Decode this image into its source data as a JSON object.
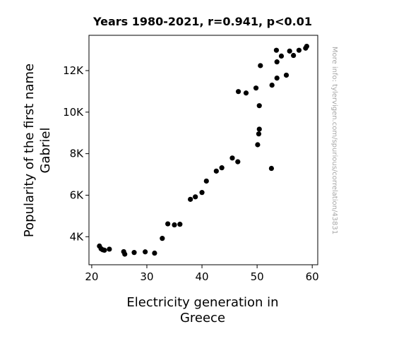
{
  "chart_data": {
    "type": "scatter",
    "title": "Years 1980-2021, r=0.941, p<0.01",
    "xlabel_lines": [
      "Electricity generation in",
      "Greece"
    ],
    "ylabel_lines": [
      "Popularity of the first name",
      "Gabriel"
    ],
    "side_note": "More info: tylervigen.com/spurious/correlation/43831",
    "xlim": [
      19.5,
      61
    ],
    "ylim": [
      2650,
      13700
    ],
    "x_ticks": [
      20,
      30,
      40,
      50,
      60
    ],
    "x_tick_labels": [
      "20",
      "30",
      "40",
      "50",
      "60"
    ],
    "y_ticks": [
      4000,
      6000,
      8000,
      10000,
      12000
    ],
    "y_tick_labels": [
      "4K",
      "6K",
      "8K",
      "10K",
      "12K"
    ],
    "point_color": "#000000",
    "points": [
      {
        "x": 21.4,
        "y": 3550
      },
      {
        "x": 21.7,
        "y": 3420
      },
      {
        "x": 22.0,
        "y": 3370
      },
      {
        "x": 22.3,
        "y": 3350
      },
      {
        "x": 23.2,
        "y": 3400
      },
      {
        "x": 25.8,
        "y": 3280
      },
      {
        "x": 26.0,
        "y": 3160
      },
      {
        "x": 27.7,
        "y": 3240
      },
      {
        "x": 29.7,
        "y": 3270
      },
      {
        "x": 31.4,
        "y": 3210
      },
      {
        "x": 32.8,
        "y": 3920
      },
      {
        "x": 33.8,
        "y": 4620
      },
      {
        "x": 35.0,
        "y": 4570
      },
      {
        "x": 36.0,
        "y": 4600
      },
      {
        "x": 37.9,
        "y": 5800
      },
      {
        "x": 38.8,
        "y": 5920
      },
      {
        "x": 40.0,
        "y": 6130
      },
      {
        "x": 40.8,
        "y": 6680
      },
      {
        "x": 42.6,
        "y": 7160
      },
      {
        "x": 43.6,
        "y": 7320
      },
      {
        "x": 45.5,
        "y": 7790
      },
      {
        "x": 46.5,
        "y": 7610
      },
      {
        "x": 46.6,
        "y": 10990
      },
      {
        "x": 48.0,
        "y": 10920
      },
      {
        "x": 49.8,
        "y": 11160
      },
      {
        "x": 50.1,
        "y": 8430
      },
      {
        "x": 50.3,
        "y": 8950
      },
      {
        "x": 50.4,
        "y": 9180
      },
      {
        "x": 50.4,
        "y": 10310
      },
      {
        "x": 50.6,
        "y": 12240
      },
      {
        "x": 52.6,
        "y": 7290
      },
      {
        "x": 52.7,
        "y": 11300
      },
      {
        "x": 53.5,
        "y": 12980
      },
      {
        "x": 53.6,
        "y": 12420
      },
      {
        "x": 53.6,
        "y": 11640
      },
      {
        "x": 54.4,
        "y": 12700
      },
      {
        "x": 55.3,
        "y": 11780
      },
      {
        "x": 55.9,
        "y": 12940
      },
      {
        "x": 56.6,
        "y": 12730
      },
      {
        "x": 57.6,
        "y": 12980
      },
      {
        "x": 58.8,
        "y": 13080
      },
      {
        "x": 59.0,
        "y": 13170
      }
    ]
  }
}
